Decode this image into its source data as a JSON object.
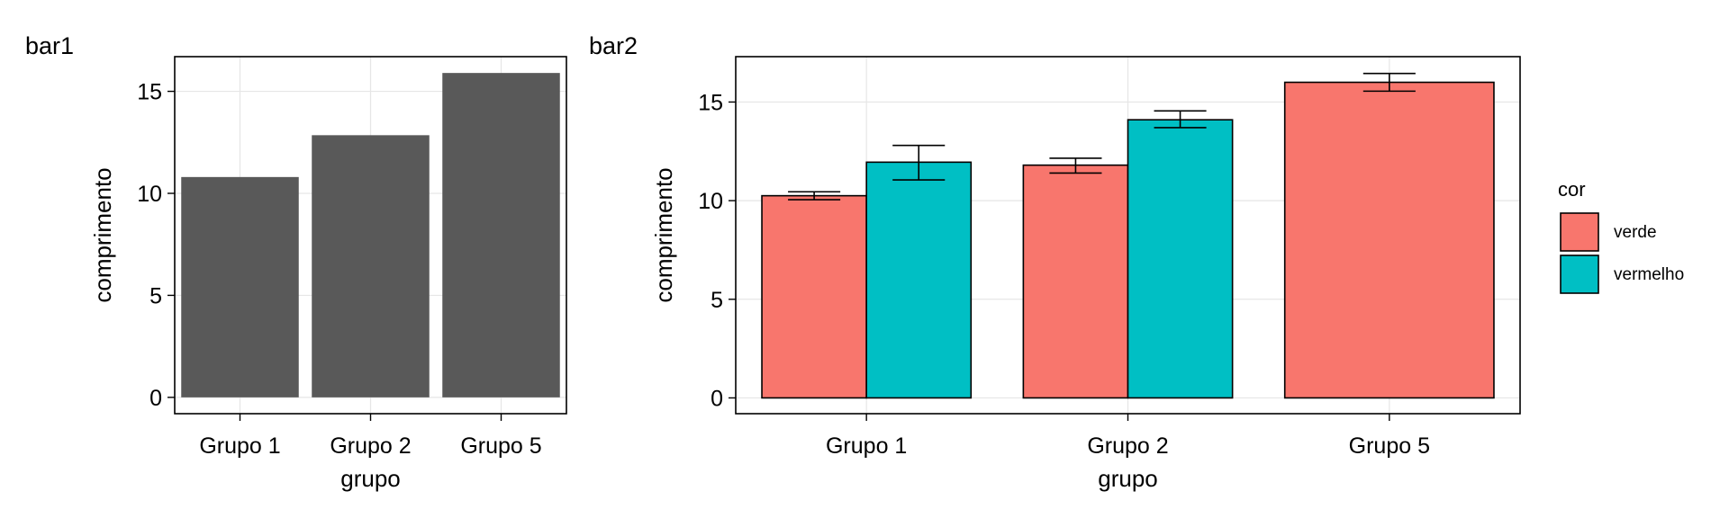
{
  "chart_data": [
    {
      "type": "bar",
      "title": "bar1",
      "xlabel": "grupo",
      "ylabel": "comprimento",
      "categories": [
        "Grupo 1",
        "Grupo 2",
        "Grupo 5"
      ],
      "values": [
        10.8,
        12.85,
        15.9
      ],
      "ylim": [
        -0.8,
        16.7
      ],
      "yticks": [
        0,
        5,
        10,
        15
      ],
      "grid": true,
      "colors": {
        "bar": "#595959"
      }
    },
    {
      "type": "bar",
      "title": "bar2",
      "xlabel": "grupo",
      "ylabel": "comprimento",
      "categories": [
        "Grupo 1",
        "Grupo 2",
        "Grupo 5"
      ],
      "ylim": [
        -0.8,
        17.3
      ],
      "yticks": [
        0,
        5,
        10,
        15
      ],
      "grid": true,
      "legend": {
        "title": "cor",
        "position": "right"
      },
      "series": [
        {
          "name": "verde",
          "color": "#F8766D",
          "values": [
            10.25,
            11.8,
            16.0
          ],
          "error_low": [
            10.05,
            11.4,
            15.55
          ],
          "error_high": [
            10.45,
            12.15,
            16.45
          ]
        },
        {
          "name": "vermelho",
          "color": "#00BFC4",
          "values": [
            11.95,
            14.1,
            null
          ],
          "error_low": [
            11.05,
            13.7,
            null
          ],
          "error_high": [
            12.8,
            14.55,
            null
          ]
        }
      ]
    }
  ]
}
